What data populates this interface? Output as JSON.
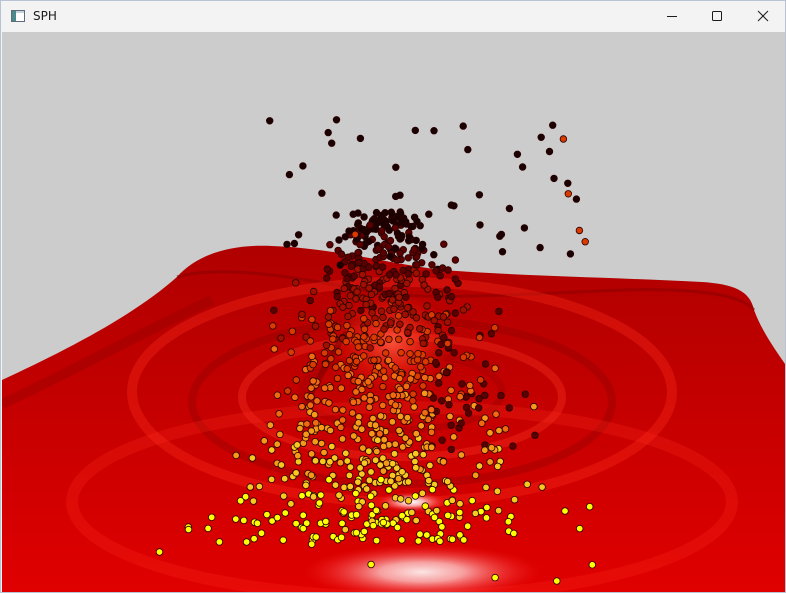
{
  "window": {
    "title": "SPH",
    "icon": "app-window-icon",
    "controls": [
      "minimize-icon",
      "maximize-icon",
      "close-icon"
    ]
  },
  "scene": {
    "background_color": "#cccccc",
    "surface_color": "#dd0000",
    "surface_highlight": "#ffffff",
    "particle_palette": [
      "#1a0000",
      "#5a0000",
      "#a01000",
      "#d83a00",
      "#f06a10",
      "#f59a18",
      "#f7c820",
      "#ffff00"
    ],
    "particle_outline": "#2a0000"
  }
}
